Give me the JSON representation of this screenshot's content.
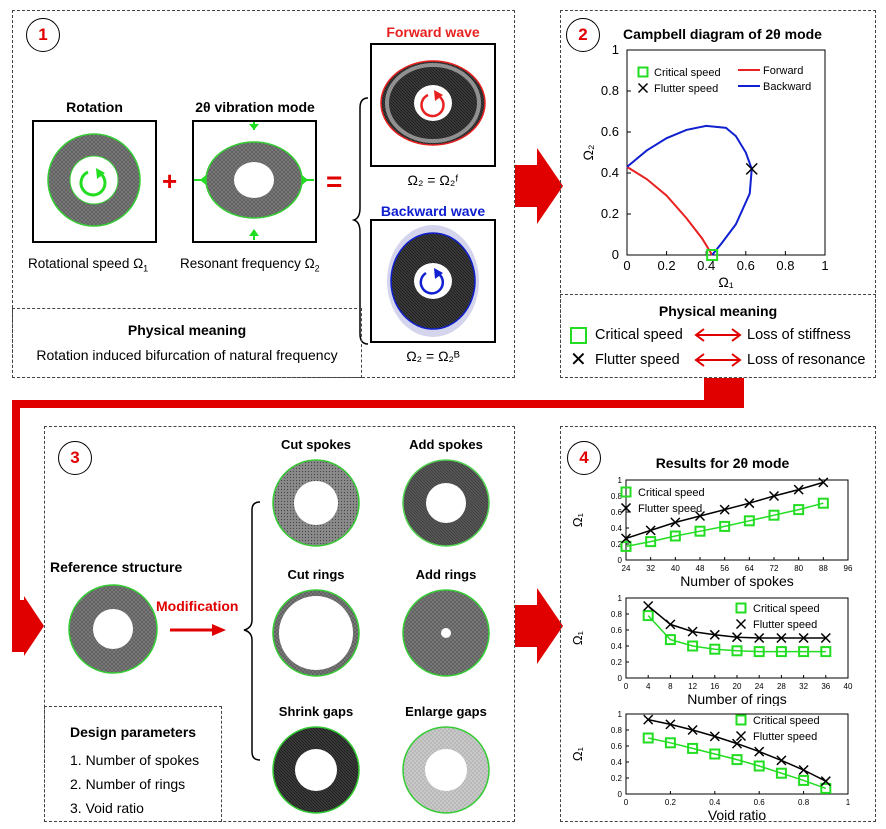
{
  "panel1": {
    "badge": "1",
    "rotation_title": "Rotation",
    "mode_title": "2θ vibration mode",
    "plus": "+",
    "equals": "=",
    "rot_caption": "Rotational speed Ω",
    "rot_caption_sub": "1",
    "res_caption": "Resonant frequency Ω",
    "res_caption_sub": "2",
    "forward_title": "Forward wave",
    "backward_title": "Backward wave",
    "forward_eq": "Ω₂ = Ω₂ᶠ",
    "backward_eq": "Ω₂ = Ω₂ᴮ",
    "meaning_title": "Physical meaning",
    "meaning_text": "Rotation induced bifurcation of natural frequency"
  },
  "panel2": {
    "badge": "2",
    "meaning_title": "Physical meaning",
    "critical_label": "Critical speed",
    "critical_meaning": "Loss of stiffness",
    "flutter_label": "Flutter speed",
    "flutter_meaning": "Loss of resonance"
  },
  "panel3": {
    "badge": "3",
    "reference_label": "Reference structure",
    "modification_label": "Modification",
    "options": [
      "Cut spokes",
      "Add spokes",
      "Cut rings",
      "Add rings",
      "Shrink gaps",
      "Enlarge gaps"
    ],
    "design_title": "Design parameters",
    "design_items": [
      "1. Number of spokes",
      "2. Number of rings",
      "3. Void ratio"
    ]
  },
  "panel4": {
    "badge": "4",
    "title": "Results for 2θ mode"
  },
  "colors": {
    "accent": "#e00000",
    "forward": "#e82020",
    "backward": "#1020d0",
    "critical": "#22dd22",
    "flutter": "#000000"
  },
  "chart_data": [
    {
      "type": "line",
      "title": "Campbell diagram of 2θ mode",
      "xlabel": "Ω₁",
      "ylabel": "Ω₂",
      "xlim": [
        0,
        1
      ],
      "ylim": [
        0,
        1
      ],
      "xticks": [
        "0",
        "0.2",
        "0.4",
        "0.6",
        "0.8",
        "1"
      ],
      "yticks": [
        "0",
        "0.2",
        "0.4",
        "0.6",
        "0.8",
        "1"
      ],
      "legend": [
        "Critical speed",
        "Flutter speed",
        "Forward",
        "Backward"
      ],
      "series": [
        {
          "name": "Forward",
          "x": [
            0,
            0.1,
            0.2,
            0.3,
            0.38,
            0.43
          ],
          "y": [
            0.43,
            0.37,
            0.29,
            0.18,
            0.08,
            0
          ]
        },
        {
          "name": "Backward",
          "x": [
            0,
            0.1,
            0.2,
            0.3,
            0.4,
            0.5,
            0.55,
            0.6,
            0.63,
            0.62,
            0.55,
            0.48,
            0.43
          ],
          "y": [
            0.43,
            0.51,
            0.57,
            0.61,
            0.63,
            0.62,
            0.58,
            0.5,
            0.42,
            0.3,
            0.15,
            0.06,
            0
          ]
        }
      ],
      "points": [
        {
          "name": "Critical speed",
          "x": 0.43,
          "y": 0
        },
        {
          "name": "Flutter speed",
          "x": 0.63,
          "y": 0.42
        }
      ]
    },
    {
      "type": "line",
      "xlabel": "Number of spokes",
      "ylabel": "Ω₁",
      "xlim": [
        24,
        96
      ],
      "ylim": [
        0,
        1
      ],
      "xticks": [
        "24",
        "32",
        "40",
        "48",
        "56",
        "64",
        "72",
        "80",
        "88",
        "96"
      ],
      "yticks": [
        "0",
        "0.2",
        "0.4",
        "0.6",
        "0.8",
        "1"
      ],
      "legend": [
        "Critical speed",
        "Flutter speed"
      ],
      "series": [
        {
          "name": "Critical speed",
          "x": [
            24,
            32,
            40,
            48,
            56,
            64,
            72,
            80,
            88
          ],
          "y": [
            0.17,
            0.23,
            0.3,
            0.36,
            0.42,
            0.49,
            0.56,
            0.63,
            0.71
          ]
        },
        {
          "name": "Flutter speed",
          "x": [
            24,
            32,
            40,
            48,
            56,
            64,
            72,
            80,
            88
          ],
          "y": [
            0.27,
            0.37,
            0.47,
            0.55,
            0.63,
            0.71,
            0.8,
            0.88,
            0.97
          ]
        }
      ]
    },
    {
      "type": "line",
      "xlabel": "Number of rings",
      "ylabel": "Ω₁",
      "xlim": [
        0,
        40
      ],
      "ylim": [
        0,
        1
      ],
      "xticks": [
        "0",
        "4",
        "8",
        "12",
        "16",
        "20",
        "24",
        "28",
        "32",
        "36",
        "40"
      ],
      "yticks": [
        "0",
        "0.2",
        "0.4",
        "0.6",
        "0.8",
        "1"
      ],
      "legend": [
        "Critical speed",
        "Flutter speed"
      ],
      "series": [
        {
          "name": "Critical speed",
          "x": [
            4,
            8,
            12,
            16,
            20,
            24,
            28,
            32,
            36
          ],
          "y": [
            0.78,
            0.48,
            0.4,
            0.36,
            0.34,
            0.33,
            0.33,
            0.33,
            0.33
          ]
        },
        {
          "name": "Flutter speed",
          "x": [
            4,
            8,
            12,
            16,
            20,
            24,
            28,
            32,
            36
          ],
          "y": [
            0.9,
            0.67,
            0.58,
            0.54,
            0.51,
            0.5,
            0.5,
            0.5,
            0.5
          ]
        }
      ]
    },
    {
      "type": "line",
      "xlabel": "Void ratio",
      "ylabel": "Ω₁",
      "xlim": [
        0,
        1
      ],
      "ylim": [
        0,
        1
      ],
      "xticks": [
        "0",
        "0.2",
        "0.4",
        "0.6",
        "0.8",
        "1"
      ],
      "yticks": [
        "0",
        "0.2",
        "0.4",
        "0.6",
        "0.8",
        "1"
      ],
      "legend": [
        "Critical speed",
        "Flutter speed"
      ],
      "series": [
        {
          "name": "Critical speed",
          "x": [
            0.1,
            0.2,
            0.3,
            0.4,
            0.5,
            0.6,
            0.7,
            0.8,
            0.9
          ],
          "y": [
            0.7,
            0.64,
            0.57,
            0.5,
            0.43,
            0.35,
            0.26,
            0.17,
            0.07
          ]
        },
        {
          "name": "Flutter speed",
          "x": [
            0.1,
            0.2,
            0.3,
            0.4,
            0.5,
            0.6,
            0.7,
            0.8,
            0.9
          ],
          "y": [
            0.93,
            0.87,
            0.8,
            0.72,
            0.63,
            0.53,
            0.42,
            0.3,
            0.16
          ]
        }
      ]
    }
  ]
}
